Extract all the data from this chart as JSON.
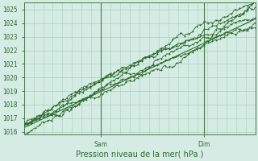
{
  "title": "Pression niveau de la mer( hPa )",
  "ylabel_ticks": [
    1016,
    1017,
    1018,
    1019,
    1020,
    1021,
    1022,
    1023,
    1024,
    1025
  ],
  "ylim": [
    1015.8,
    1025.5
  ],
  "xlim": [
    0,
    72
  ],
  "bg_color": "#d4ece3",
  "grid_color": "#aacfbf",
  "line_color": "#2d6b2d",
  "text_color": "#2d6b2d",
  "sam_x": 24,
  "dim_x": 56,
  "vline_color": "#4a7a4a",
  "figsize": [
    3.2,
    2.0
  ],
  "dpi": 100
}
